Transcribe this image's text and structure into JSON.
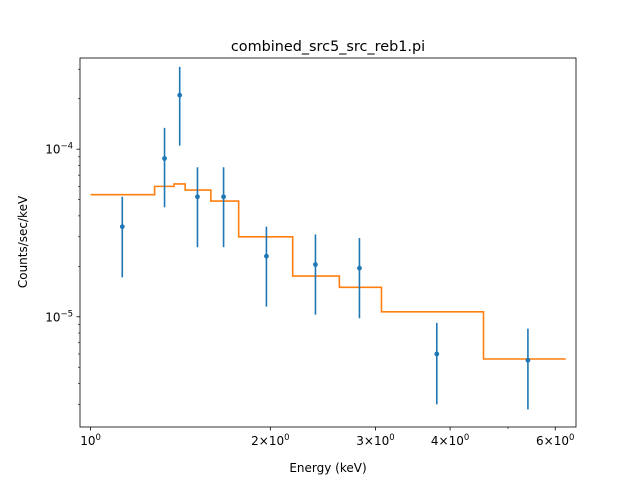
{
  "chart_data": {
    "type": "scatter",
    "title": "combined_src5_src_reb1.pi",
    "xlabel": "Energy (keV)",
    "ylabel": "Counts/sec/keV",
    "xscale": "log",
    "yscale": "log",
    "xlim": [
      0.96,
      6.5
    ],
    "ylim": [
      2.2e-06,
      0.00035
    ],
    "x_major_ticks": [
      {
        "value": 1,
        "base": "10",
        "exp": "0",
        "mant": ""
      },
      {
        "value": 2,
        "base": "10",
        "exp": "0",
        "mant": "2×"
      },
      {
        "value": 3,
        "base": "10",
        "exp": "0",
        "mant": "3×"
      },
      {
        "value": 4,
        "base": "10",
        "exp": "0",
        "mant": "4×"
      },
      {
        "value": 6,
        "base": "10",
        "exp": "0",
        "mant": "6×"
      }
    ],
    "x_minor_ticks": [
      5
    ],
    "y_major_ticks": [
      {
        "value": 1e-05,
        "base": "10",
        "exp": "−5"
      },
      {
        "value": 0.0001,
        "base": "10",
        "exp": "−4"
      }
    ],
    "y_minor_ticks": [
      3e-06,
      4e-06,
      5e-06,
      6e-06,
      7e-06,
      8e-06,
      9e-06,
      2e-05,
      3e-05,
      4e-05,
      5e-05,
      6e-05,
      7e-05,
      8e-05,
      9e-05,
      0.0002,
      0.0003
    ],
    "series": [
      {
        "kind": "data_errorbars",
        "color": "#1f77b4",
        "points": [
          {
            "x": 1.13,
            "y": 3.45e-05,
            "ylo": 1.72e-05,
            "yhi": 5.2e-05
          },
          {
            "x": 1.33,
            "y": 8.8e-05,
            "ylo": 4.5e-05,
            "yhi": 0.000134
          },
          {
            "x": 1.41,
            "y": 0.00021,
            "ylo": 0.000105,
            "yhi": 0.00031
          },
          {
            "x": 1.51,
            "y": 5.2e-05,
            "ylo": 2.6e-05,
            "yhi": 7.8e-05
          },
          {
            "x": 1.67,
            "y": 5.2e-05,
            "ylo": 2.6e-05,
            "yhi": 7.8e-05
          },
          {
            "x": 1.97,
            "y": 2.3e-05,
            "ylo": 1.15e-05,
            "yhi": 3.45e-05
          },
          {
            "x": 2.38,
            "y": 2.05e-05,
            "ylo": 1.03e-05,
            "yhi": 3.1e-05
          },
          {
            "x": 2.82,
            "y": 1.95e-05,
            "ylo": 9.8e-06,
            "yhi": 2.95e-05
          },
          {
            "x": 3.8,
            "y": 6e-06,
            "ylo": 3e-06,
            "yhi": 9.2e-06
          },
          {
            "x": 5.4,
            "y": 5.5e-06,
            "ylo": 2.8e-06,
            "yhi": 8.5e-06
          }
        ]
      },
      {
        "kind": "model_step",
        "color": "#ff7f0e",
        "bins": [
          {
            "x0": 1.0,
            "x1": 1.28,
            "y": 5.35e-05
          },
          {
            "x0": 1.28,
            "x1": 1.38,
            "y": 6e-05
          },
          {
            "x0": 1.38,
            "x1": 1.44,
            "y": 6.2e-05
          },
          {
            "x0": 1.44,
            "x1": 1.59,
            "y": 5.7e-05
          },
          {
            "x0": 1.59,
            "x1": 1.77,
            "y": 4.9e-05
          },
          {
            "x0": 1.77,
            "x1": 2.18,
            "y": 3e-05
          },
          {
            "x0": 2.18,
            "x1": 2.61,
            "y": 1.75e-05
          },
          {
            "x0": 2.61,
            "x1": 3.07,
            "y": 1.5e-05
          },
          {
            "x0": 3.07,
            "x1": 4.55,
            "y": 1.07e-05
          },
          {
            "x0": 4.55,
            "x1": 6.25,
            "y": 5.6e-06
          }
        ]
      }
    ]
  }
}
